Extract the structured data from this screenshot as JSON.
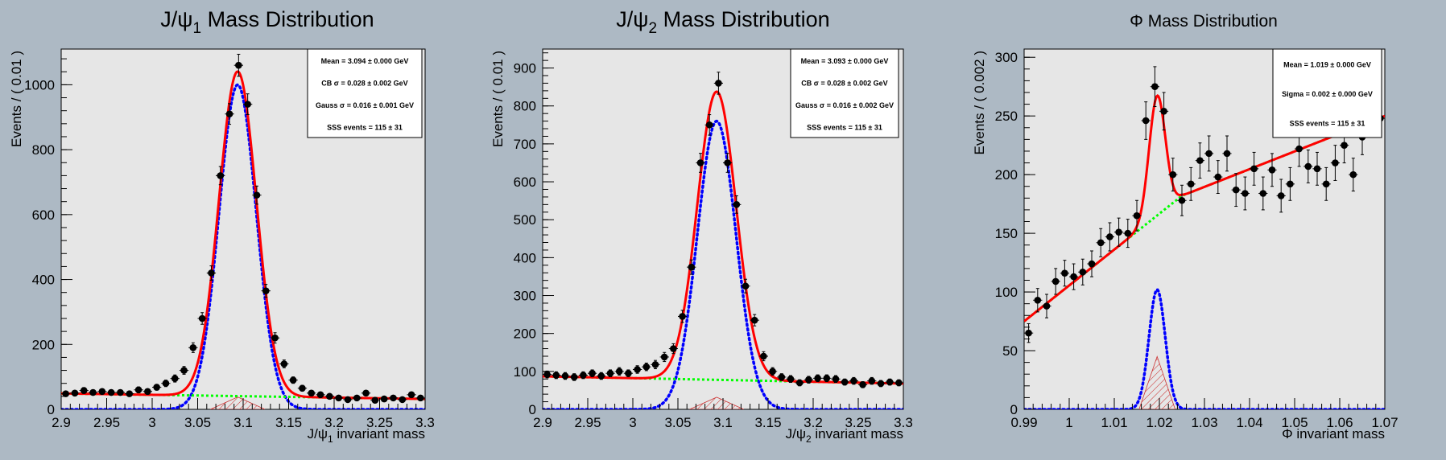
{
  "colors": {
    "background": "#adb9c4",
    "frame": "#e6e6e6",
    "data": "#000000",
    "total_fit": "#ff0000",
    "signal": "#0000ff",
    "background_fit": "#00ff00",
    "hatch": "#cc3333"
  },
  "chart_data": [
    {
      "type": "scatter",
      "title": "J/ψ1 Mass Distribution",
      "title_main": "J/ψ",
      "title_sub": "1",
      "title_rest": " Mass Distribution",
      "xlabel": "J/ψ1 invariant mass",
      "xlabel_main": "J/ψ",
      "xlabel_sub": "1",
      "xlabel_rest": " invariant mass",
      "ylabel": "Events / ( 0.01 )",
      "xlim": [
        2.9,
        3.3
      ],
      "ylim": [
        0,
        1110
      ],
      "xticks": [
        "2.9",
        "2.95",
        "3",
        "3.05",
        "3.1",
        "3.15",
        "3.2",
        "3.25",
        "3.3"
      ],
      "yticks": [
        "0",
        "200",
        "400",
        "600",
        "800",
        "1000"
      ],
      "legend_position": "top-right",
      "stats": [
        "Mean = 3.094 ± 0.000 GeV",
        "CB σ = 0.028 ± 0.002 GeV",
        "Gauss σ = 0.016 ± 0.001 GeV",
        "SSS events = 115 ± 31"
      ],
      "x": [
        2.905,
        2.915,
        2.925,
        2.935,
        2.945,
        2.955,
        2.965,
        2.975,
        2.985,
        2.995,
        3.005,
        3.015,
        3.025,
        3.035,
        3.045,
        3.055,
        3.065,
        3.075,
        3.085,
        3.095,
        3.105,
        3.115,
        3.125,
        3.135,
        3.145,
        3.155,
        3.165,
        3.175,
        3.185,
        3.195,
        3.205,
        3.215,
        3.225,
        3.235,
        3.245,
        3.255,
        3.265,
        3.275,
        3.285,
        3.295
      ],
      "y": [
        48,
        50,
        58,
        52,
        55,
        52,
        52,
        48,
        60,
        55,
        68,
        80,
        95,
        120,
        190,
        280,
        420,
        720,
        910,
        1060,
        940,
        660,
        365,
        220,
        140,
        90,
        65,
        50,
        45,
        40,
        35,
        30,
        35,
        50,
        28,
        32,
        35,
        30,
        45,
        35
      ],
      "yerr": [
        8,
        8,
        9,
        8,
        8,
        8,
        8,
        8,
        9,
        8,
        9,
        10,
        11,
        12,
        15,
        18,
        22,
        28,
        32,
        34,
        32,
        28,
        20,
        16,
        12,
        10,
        9,
        8,
        8,
        7,
        7,
        7,
        7,
        8,
        7,
        7,
        7,
        7,
        8,
        7
      ],
      "model": {
        "mean": 3.094,
        "width": 0.0205,
        "amplitude": 1000,
        "bg_start": 49,
        "bg_end": 32,
        "hatch_amplitude": 38,
        "hatch_width": 0.03
      }
    },
    {
      "type": "scatter",
      "title": "J/ψ2 Mass Distribution",
      "title_main": "J/ψ",
      "title_sub": "2",
      "title_rest": " Mass Distribution",
      "xlabel": "J/ψ2 invariant mass",
      "xlabel_main": "J/ψ",
      "xlabel_sub": "2",
      "xlabel_rest": " invariant mass",
      "ylabel": "Events / ( 0.01 )",
      "xlim": [
        2.9,
        3.3
      ],
      "ylim": [
        0,
        950
      ],
      "xticks": [
        "2.9",
        "2.95",
        "3",
        "3.05",
        "3.1",
        "3.15",
        "3.2",
        "3.25",
        "3.3"
      ],
      "yticks": [
        "0",
        "100",
        "200",
        "300",
        "400",
        "500",
        "600",
        "700",
        "800",
        "900"
      ],
      "legend_position": "top-right",
      "stats": [
        "Mean = 3.093 ± 0.000 GeV",
        "CB σ = 0.028 ± 0.002 GeV",
        "Gauss σ = 0.016 ± 0.002 GeV",
        "SSS events = 115 ± 31"
      ],
      "x": [
        2.905,
        2.915,
        2.925,
        2.935,
        2.945,
        2.955,
        2.965,
        2.975,
        2.985,
        2.995,
        3.005,
        3.015,
        3.025,
        3.035,
        3.045,
        3.055,
        3.065,
        3.075,
        3.085,
        3.095,
        3.105,
        3.115,
        3.125,
        3.135,
        3.145,
        3.155,
        3.165,
        3.175,
        3.185,
        3.195,
        3.205,
        3.215,
        3.225,
        3.235,
        3.245,
        3.255,
        3.265,
        3.275,
        3.285,
        3.295
      ],
      "y": [
        92,
        90,
        88,
        85,
        90,
        95,
        88,
        95,
        100,
        95,
        105,
        112,
        118,
        138,
        160,
        245,
        375,
        650,
        750,
        860,
        650,
        540,
        325,
        235,
        140,
        100,
        85,
        80,
        70,
        78,
        82,
        82,
        80,
        72,
        75,
        65,
        75,
        68,
        72,
        70
      ],
      "yerr": [
        9,
        9,
        9,
        9,
        9,
        9,
        9,
        9,
        10,
        9,
        10,
        10,
        11,
        12,
        13,
        16,
        19,
        25,
        27,
        29,
        25,
        23,
        18,
        15,
        12,
        10,
        9,
        9,
        8,
        9,
        9,
        9,
        9,
        8,
        9,
        8,
        9,
        8,
        8,
        8
      ],
      "model": {
        "mean": 3.093,
        "width": 0.0215,
        "amplitude": 760,
        "bg_start": 87,
        "bg_end": 68,
        "hatch_amplitude": 32,
        "hatch_width": 0.03
      }
    },
    {
      "type": "scatter",
      "title": "Φ Mass Distribution",
      "title_main": "Φ Mass Distribution",
      "title_sub": "",
      "title_rest": "",
      "xlabel": "Φ invariant mass",
      "xlabel_main": "Φ invariant mass",
      "xlabel_sub": "",
      "xlabel_rest": "",
      "ylabel": "Events / ( 0.002 )",
      "xlim": [
        0.99,
        1.07
      ],
      "ylim": [
        0,
        307
      ],
      "xticks": [
        "0.99",
        "1",
        "1.01",
        "1.02",
        "1.03",
        "1.04",
        "1.05",
        "1.06",
        "1.07"
      ],
      "yticks": [
        "0",
        "50",
        "100",
        "150",
        "200",
        "250",
        "300"
      ],
      "legend_position": "top-right",
      "stats": [
        "Mean = 1.019 ± 0.000 GeV",
        "Sigma = 0.002 ± 0.000 GeV",
        "SSS events = 115 ± 31"
      ],
      "x": [
        0.991,
        0.993,
        0.995,
        0.997,
        0.999,
        1.001,
        1.003,
        1.005,
        1.007,
        1.009,
        1.011,
        1.013,
        1.015,
        1.017,
        1.019,
        1.021,
        1.023,
        1.025,
        1.027,
        1.029,
        1.031,
        1.033,
        1.035,
        1.037,
        1.039,
        1.041,
        1.043,
        1.045,
        1.047,
        1.049,
        1.051,
        1.053,
        1.055,
        1.057,
        1.059,
        1.061,
        1.063,
        1.065,
        1.067,
        1.069
      ],
      "y": [
        65,
        93,
        88,
        109,
        116,
        113,
        117,
        124,
        142,
        147,
        151,
        150,
        165,
        246,
        275,
        254,
        200,
        178,
        192,
        212,
        218,
        198,
        218,
        187,
        184,
        205,
        184,
        204,
        182,
        192,
        222,
        207,
        205,
        192,
        210,
        225,
        200,
        232,
        262,
        248
      ],
      "yerr": [
        8,
        10,
        10,
        11,
        11,
        11,
        11,
        11,
        12,
        12,
        12,
        12,
        13,
        16,
        17,
        16,
        14,
        13,
        14,
        15,
        15,
        14,
        15,
        14,
        14,
        14,
        14,
        14,
        14,
        14,
        15,
        14,
        14,
        14,
        15,
        15,
        14,
        15,
        16,
        16
      ],
      "model": {
        "mean": 1.0195,
        "width": 0.0018,
        "amplitude": 102,
        "bg_start": 75,
        "bg_end": 250,
        "bg_knee": 1.025,
        "bg_knee_value": 182,
        "hatch_amplitude": 45,
        "hatch_width": 0.004
      }
    }
  ]
}
